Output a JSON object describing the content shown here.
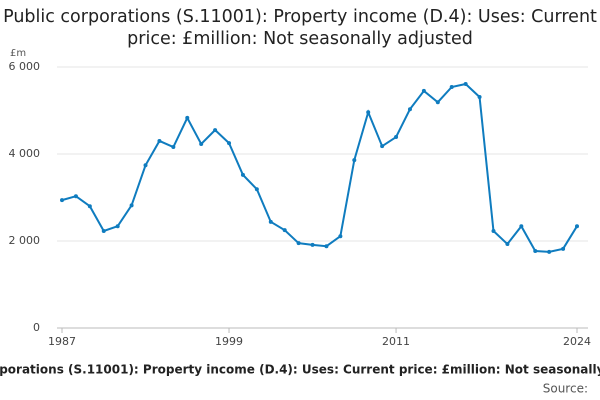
{
  "chart_data": {
    "type": "line",
    "title": "Public corporations (S.11001): Property income (D.4): Uses: Current price: £million: Not seasonally adjusted",
    "y_label": "£m",
    "source_label": "Source:",
    "x": [
      1987,
      1988,
      1989,
      1990,
      1991,
      1992,
      1993,
      1994,
      1995,
      1996,
      1997,
      1998,
      1999,
      2000,
      2001,
      2002,
      2003,
      2004,
      2005,
      2006,
      2007,
      2008,
      2009,
      2010,
      2011,
      2012,
      2013,
      2014,
      2015,
      2016,
      2017,
      2018,
      2019,
      2020,
      2021,
      2022,
      2023,
      2024
    ],
    "series": [
      {
        "color": "#0f7cbf",
        "values": [
          2940,
          3030,
          2800,
          2230,
          2340,
          2820,
          3740,
          4300,
          4160,
          4830,
          4230,
          4550,
          4250,
          3520,
          3190,
          2440,
          2250,
          1950,
          1910,
          1880,
          2110,
          3860,
          4960,
          4180,
          4390,
          5030,
          5450,
          5190,
          5540,
          5610,
          5310,
          2230,
          1930,
          2340,
          1770,
          1750,
          1820,
          2340
        ]
      }
    ],
    "xlim": [
      1987,
      2024
    ],
    "xticks": [
      1987,
      1999,
      2011,
      2024
    ],
    "ylim": [
      0,
      6000
    ],
    "yticks": [
      0,
      {
        "value": 2000,
        "label": "2 000"
      },
      {
        "value": 4000,
        "label": "4 000"
      },
      {
        "value": 6000,
        "label": "6 000"
      }
    ],
    "grid": true
  }
}
